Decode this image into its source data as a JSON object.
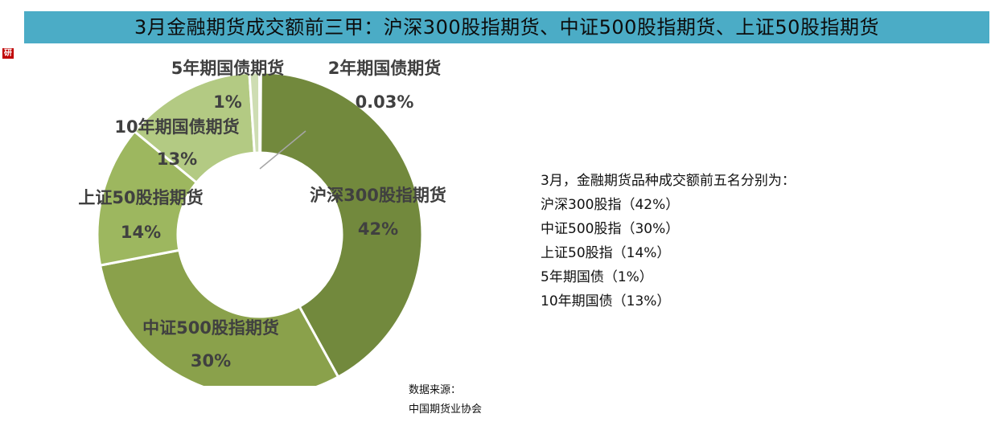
{
  "title": "3月金融期货成交额前三甲：沪深300股指期货、中证500股指期货、上证50股指期货",
  "chart_data": {
    "type": "pie",
    "donut": true,
    "slices": [
      {
        "name": "沪深300股指期货",
        "value": 42,
        "label": "42%",
        "color": "#72893D"
      },
      {
        "name": "中证500股指期货",
        "value": 30,
        "label": "30%",
        "color": "#8AA14B"
      },
      {
        "name": "上证50股指期货",
        "value": 14,
        "label": "14%",
        "color": "#9DB75F"
      },
      {
        "name": "10年期国债期货",
        "value": 13,
        "label": "13%",
        "color": "#B3CA83"
      },
      {
        "name": "5年期国债期货",
        "value": 1,
        "label": "1%",
        "color": "#CEDDB3"
      },
      {
        "name": "2年期国债期货",
        "value": 0.03,
        "label": "0.03%",
        "color": "#E3ECD3"
      }
    ]
  },
  "summary": {
    "heading": "3月，金融期货品种成交额前五名分别为：",
    "items": [
      "沪深300股指（42%）",
      "中证500股指（30%）",
      "上证50股指（14%）",
      "5年期国债（1%）",
      "10年期国债（13%）"
    ]
  },
  "source": {
    "label": "数据来源：",
    "org": "中国期货业协会"
  }
}
